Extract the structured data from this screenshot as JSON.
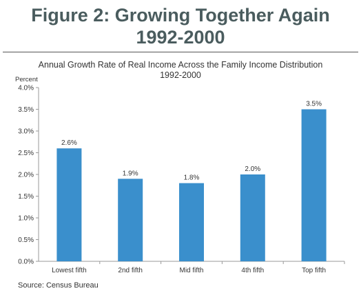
{
  "figure": {
    "title_line1": "Figure 2: Growing Together Again",
    "title_line2": "1992-2000"
  },
  "source": "Source: Census Bureau",
  "chart_data": {
    "type": "bar",
    "title_line1": "Annual Growth Rate of Real Income Across the Family Income Distribution",
    "title_line2": "1992-2000",
    "ylabel": "Percent",
    "xlabel": "",
    "categories": [
      "Lowest fifth",
      "2nd fifth",
      "Mid fifth",
      "4th fifth",
      "Top fifth"
    ],
    "values": [
      2.6,
      1.9,
      1.8,
      2.0,
      3.5
    ],
    "data_labels": [
      "2.6%",
      "1.9%",
      "1.8%",
      "2.0%",
      "3.5%"
    ],
    "ylim": [
      0,
      4.0
    ],
    "yticks": [
      0.0,
      0.5,
      1.0,
      1.5,
      2.0,
      2.5,
      3.0,
      3.5,
      4.0
    ],
    "ytick_labels": [
      "0.0%",
      "0.5%",
      "1.0%",
      "1.5%",
      "2.0%",
      "2.5%",
      "3.0%",
      "3.5%",
      "4.0%"
    ],
    "grid": false,
    "legend": "none",
    "bar_color": "#3a8fcc",
    "axis_color": "#999999"
  }
}
